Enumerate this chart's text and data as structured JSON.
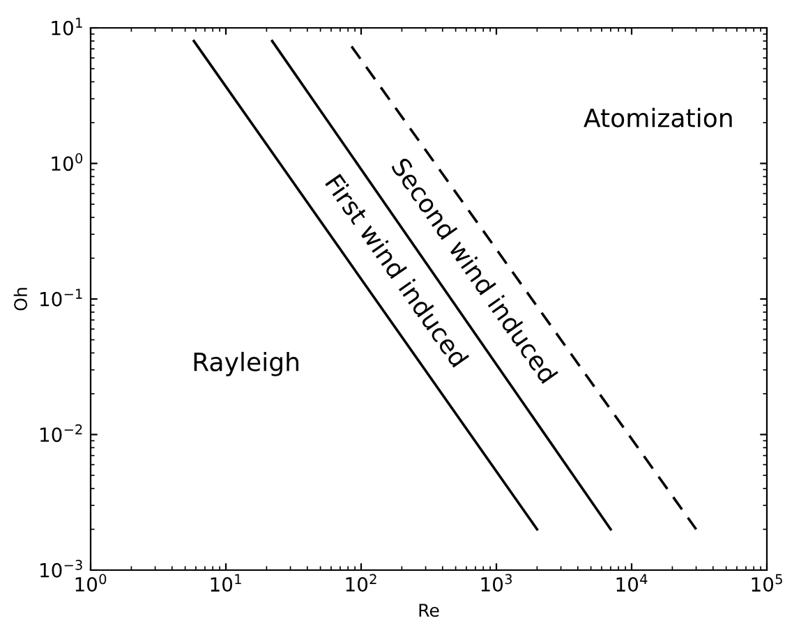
{
  "chart_data": {
    "type": "line",
    "xlabel": "Re",
    "ylabel": "Oh",
    "log": "xy",
    "xlim": [
      1,
      100000
    ],
    "ylim": [
      0.001,
      10
    ],
    "xticks": [
      {
        "value": 1,
        "label": "10$^{0}$"
      },
      {
        "value": 10,
        "label": "10$^{1}$"
      },
      {
        "value": 100,
        "label": "10$^{2}$"
      },
      {
        "value": 1000,
        "label": "10$^{3}$"
      },
      {
        "value": 10000,
        "label": "10$^{4}$"
      },
      {
        "value": 100000,
        "label": "10$^{5}$"
      }
    ],
    "yticks": [
      {
        "value": 0.001,
        "label": "10$^{−3}$"
      },
      {
        "value": 0.01,
        "label": "10$^{−2}$"
      },
      {
        "value": 0.1,
        "label": "10$^{−1}$"
      },
      {
        "value": 1,
        "label": "10$^{0}$"
      },
      {
        "value": 10,
        "label": "10$^{1}$"
      }
    ],
    "grid": false,
    "marker": "none",
    "series": [
      {
        "color": "#000000",
        "line_style": "solid",
        "x": [
          5.8,
          2000
        ],
        "values": [
          8,
          0.002
        ]
      },
      {
        "color": "#000000",
        "line_style": "solid",
        "x": [
          22,
          7000
        ],
        "values": [
          8,
          0.002
        ]
      },
      {
        "color": "#000000",
        "line_style": "dashed",
        "x": [
          85,
          30000
        ],
        "values": [
          7.3,
          0.002
        ]
      }
    ],
    "annotations": [
      "Rayleigh",
      "First wind induced",
      "Second wind induced",
      "Atomization"
    ]
  }
}
